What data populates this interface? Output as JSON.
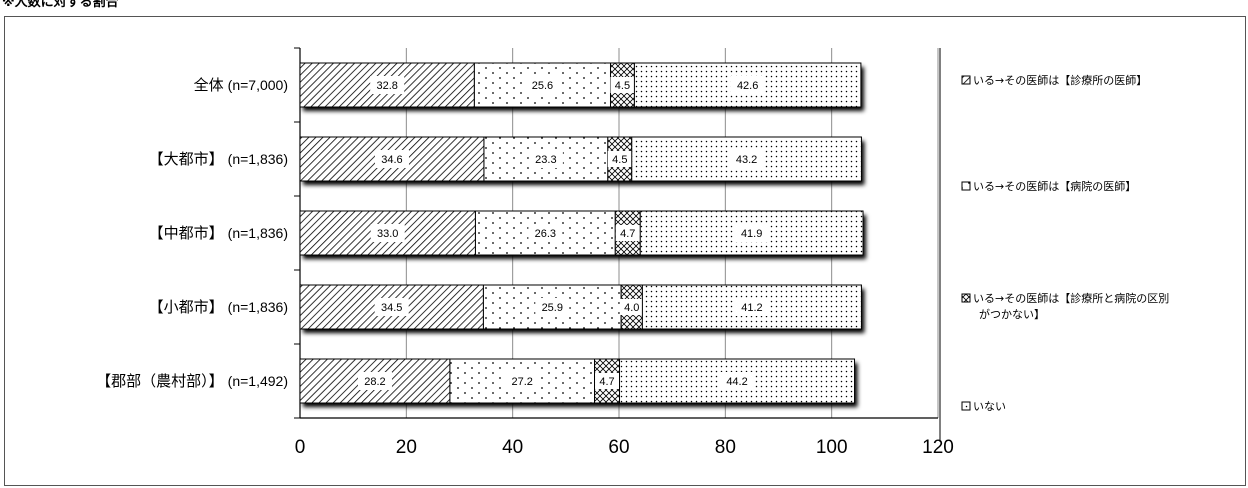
{
  "page": {
    "title": "※人数に対する割合"
  },
  "chart_data": {
    "type": "bar",
    "orientation": "horizontal",
    "stacked": true,
    "title": "※人数に対する割合",
    "categories": [
      {
        "name": "全体",
        "n": "(n=7,000)"
      },
      {
        "name": "【大都市】",
        "n": "(n=1,836)"
      },
      {
        "name": "【中都市】",
        "n": "(n=1,836)"
      },
      {
        "name": "【小都市】",
        "n": "(n=1,836)"
      },
      {
        "name": "【郡部（農村部）】",
        "n": "(n=1,492)"
      }
    ],
    "series": [
      {
        "name": "いる→その医師は【診療所の医師】",
        "values": [
          32.8,
          34.6,
          33.0,
          34.5,
          28.2
        ],
        "pattern": "diagonal-hatch"
      },
      {
        "name": "いる→その医師は【病院の医師】",
        "values": [
          25.6,
          23.3,
          26.3,
          25.9,
          27.2
        ],
        "pattern": "sparse-dots"
      },
      {
        "name": "いる→その医師は【診療所と病院の区別がつかない】",
        "values": [
          4.5,
          4.5,
          4.7,
          4.0,
          4.7
        ],
        "pattern": "cross-hatch"
      },
      {
        "name": "いない",
        "values": [
          42.6,
          43.2,
          41.9,
          41.2,
          44.2
        ],
        "pattern": "dense-dots"
      }
    ],
    "legend_lines": [
      [
        "いる→その医師は【診療所の医師】"
      ],
      [
        "いる→その医師は【病院の医師】"
      ],
      [
        "いる→その医師は【診療所と病院の区別",
        "がつかない】"
      ],
      [
        "いない"
      ]
    ],
    "xlim": [
      0,
      120
    ],
    "xticks": [
      "0",
      "20",
      "40",
      "60",
      "80",
      "100",
      "120"
    ],
    "grid": "vertical",
    "legend_position": "right",
    "colors": {
      "border": "#000000",
      "grid": "#8c8c8c",
      "fill": "#ffffff",
      "shadow": "#c8c8c8"
    }
  }
}
